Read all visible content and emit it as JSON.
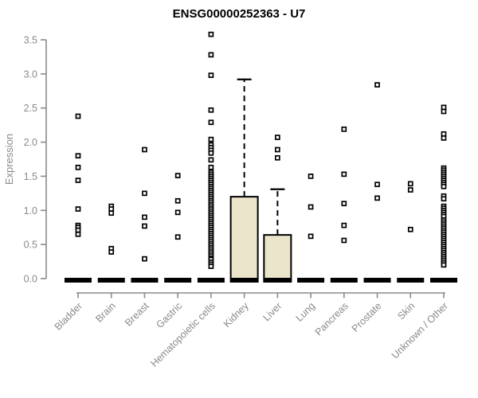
{
  "title": "ENSG00000252363 - U7",
  "colors": {
    "background": "#ffffff",
    "title": "#000000",
    "axis": "#8a8a8a",
    "tick_label": "#8a8a8a",
    "box_fill": "#ebe5cc",
    "box_border": "#000000",
    "median_bar": "#000000",
    "whisker": "#000000",
    "outlier_border": "#000000",
    "outlier_fill": "#ffffff"
  },
  "chart_data": {
    "type": "boxplot",
    "title": "ENSG00000252363 - U7",
    "xlabel": "",
    "ylabel": "Expression",
    "ylim": [
      0,
      3.5
    ],
    "yticks": [
      "0.0",
      "0.5",
      "1.0",
      "1.5",
      "2.0",
      "2.5",
      "3.0",
      "3.5"
    ],
    "grid": false,
    "legend": false,
    "categories": [
      "Bladder",
      "Brain",
      "Breast",
      "Gastric",
      "Hematopoietic cells",
      "Kidney",
      "Liver",
      "Lung",
      "Pancreas",
      "Prostate",
      "Skin",
      "Unknown / Other"
    ],
    "series": [
      {
        "label": "Bladder",
        "median": 0,
        "q1": 0,
        "q3": 0,
        "whisker_low": 0,
        "whisker_high": 0,
        "outliers": [
          2.38,
          1.8,
          1.63,
          1.44,
          1.02,
          0.78,
          0.75,
          0.71,
          0.65
        ]
      },
      {
        "label": "Brain",
        "median": 0,
        "q1": 0,
        "q3": 0,
        "whisker_low": 0,
        "whisker_high": 0,
        "outliers": [
          1.06,
          1.02,
          0.96,
          0.44,
          0.39
        ]
      },
      {
        "label": "Breast",
        "median": 0,
        "q1": 0,
        "q3": 0,
        "whisker_low": 0,
        "whisker_high": 0,
        "outliers": [
          1.89,
          1.25,
          0.9,
          0.77,
          0.29
        ]
      },
      {
        "label": "Gastric",
        "median": 0,
        "q1": 0,
        "q3": 0,
        "whisker_low": 0,
        "whisker_high": 0,
        "outliers": [
          1.51,
          1.14,
          0.97,
          0.61
        ]
      },
      {
        "label": "Hematopoietic cells",
        "median": 0,
        "q1": 0,
        "q3": 0,
        "whisker_low": 0,
        "whisker_high": 0,
        "outliers": [
          3.58,
          3.28,
          2.98,
          2.47,
          2.29,
          2.04,
          1.96,
          1.92,
          1.88,
          1.84,
          1.74,
          1.63,
          1.56,
          1.53,
          1.5,
          1.47,
          1.44,
          1.41,
          1.38,
          1.35,
          1.32,
          1.29,
          1.26,
          1.23,
          1.2,
          1.17,
          1.14,
          1.11,
          1.08,
          1.05,
          1.02,
          0.99,
          0.96,
          0.93,
          0.9,
          0.87,
          0.84,
          0.81,
          0.78,
          0.75,
          0.72,
          0.69,
          0.66,
          0.63,
          0.6,
          0.57,
          0.54,
          0.51,
          0.48,
          0.45,
          0.42,
          0.39,
          0.36,
          0.33,
          0.3,
          0.28,
          0.24,
          0.21,
          0.18
        ]
      },
      {
        "label": "Kidney",
        "median": 0,
        "q1": 0,
        "q3": 1.2,
        "whisker_low": 0,
        "whisker_high": 2.92,
        "outliers": []
      },
      {
        "label": "Liver",
        "median": 0,
        "q1": 0,
        "q3": 0.64,
        "whisker_low": 0,
        "whisker_high": 1.31,
        "outliers": [
          2.07,
          1.89,
          1.77
        ]
      },
      {
        "label": "Lung",
        "median": 0,
        "q1": 0,
        "q3": 0,
        "whisker_low": 0,
        "whisker_high": 0,
        "outliers": [
          1.5,
          1.05,
          0.62
        ]
      },
      {
        "label": "Pancreas",
        "median": 0,
        "q1": 0,
        "q3": 0,
        "whisker_low": 0,
        "whisker_high": 0,
        "outliers": [
          2.19,
          1.53,
          1.1,
          0.78,
          0.56
        ]
      },
      {
        "label": "Prostate",
        "median": 0,
        "q1": 0,
        "q3": 0,
        "whisker_low": 0,
        "whisker_high": 0,
        "outliers": [
          2.84,
          1.38,
          1.18
        ]
      },
      {
        "label": "Skin",
        "median": 0,
        "q1": 0,
        "q3": 0,
        "whisker_low": 0,
        "whisker_high": 0,
        "outliers": [
          1.39,
          1.3,
          0.72
        ]
      },
      {
        "label": "Unknown / Other",
        "median": 0,
        "q1": 0,
        "q3": 0,
        "whisker_low": 0,
        "whisker_high": 0,
        "outliers": [
          2.51,
          2.45,
          2.12,
          2.06,
          1.62,
          1.59,
          1.56,
          1.53,
          1.5,
          1.47,
          1.44,
          1.41,
          1.38,
          1.35,
          1.21,
          1.17,
          1.06,
          1.03,
          1.0,
          0.97,
          0.94,
          0.91,
          0.86,
          0.83,
          0.8,
          0.77,
          0.74,
          0.71,
          0.68,
          0.65,
          0.62,
          0.59,
          0.56,
          0.53,
          0.5,
          0.47,
          0.44,
          0.41,
          0.38,
          0.35,
          0.32,
          0.29,
          0.26,
          0.23,
          0.2
        ]
      }
    ]
  }
}
